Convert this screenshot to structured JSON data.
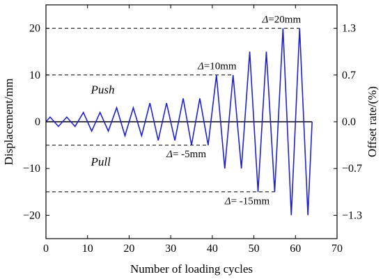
{
  "chart_data": {
    "type": "line",
    "xlabel": "Number of loading cycles",
    "ylabel": "Displacement/mm",
    "y2label": "Offset rate/(%)",
    "xlim": [
      0,
      70
    ],
    "ylim": [
      -25,
      25
    ],
    "xticks": [
      0,
      10,
      20,
      30,
      40,
      50,
      60,
      70
    ],
    "yticks": [
      -20,
      -10,
      0,
      10,
      20
    ],
    "y2ticks": [
      {
        "label": "1.3",
        "y": 20
      },
      {
        "label": "0.7",
        "y": 10
      },
      {
        "label": "0.0",
        "y": 0
      },
      {
        "label": "-0.7",
        "y": -10
      },
      {
        "label": "-1.3",
        "y": -20
      }
    ],
    "grid": false,
    "series": [
      {
        "color": "#1f1fd6",
        "points": [
          [
            0,
            0
          ],
          [
            1,
            1
          ],
          [
            3,
            -1
          ],
          [
            5,
            1
          ],
          [
            7,
            -1
          ],
          [
            9,
            2
          ],
          [
            11,
            -2
          ],
          [
            13,
            2
          ],
          [
            15,
            -2
          ],
          [
            17,
            3
          ],
          [
            19,
            -3
          ],
          [
            21,
            3
          ],
          [
            23,
            -3
          ],
          [
            25,
            4
          ],
          [
            27,
            -4
          ],
          [
            29,
            4
          ],
          [
            31,
            -4
          ],
          [
            33,
            5
          ],
          [
            35,
            -5
          ],
          [
            37,
            5
          ],
          [
            39,
            -5
          ],
          [
            41,
            10
          ],
          [
            43,
            -10
          ],
          [
            45,
            10
          ],
          [
            47,
            -10
          ],
          [
            49,
            15
          ],
          [
            51,
            -15
          ],
          [
            53,
            15
          ],
          [
            55,
            -15
          ],
          [
            57,
            20
          ],
          [
            59,
            -20
          ],
          [
            61,
            20
          ],
          [
            63,
            -20
          ],
          [
            64,
            0
          ]
        ]
      }
    ],
    "baseline": {
      "y": 0,
      "x_from": 0,
      "x_to": 64,
      "color": "#000000"
    },
    "reference_lines": [
      {
        "y": 20,
        "x_from": 0,
        "x_to": 61,
        "style": "dashed"
      },
      {
        "y": 10,
        "x_from": 0,
        "x_to": 45,
        "style": "dashed"
      },
      {
        "y": -5,
        "x_from": 0,
        "x_to": 39,
        "style": "dashed"
      },
      {
        "y": -15,
        "x_from": 0,
        "x_to": 55,
        "style": "dashed"
      }
    ],
    "annotations": [
      {
        "symbol": "Δ",
        "text": "=20mm",
        "x": 52,
        "y": 21.2
      },
      {
        "symbol": "Δ",
        "text": "=10mm",
        "x": 36.5,
        "y": 11.2
      },
      {
        "symbol": "Δ",
        "text": "= -5mm",
        "x": 29,
        "y": -7.6
      },
      {
        "symbol": "Δ",
        "text": "= -15mm",
        "x": 43,
        "y": -17.6
      }
    ],
    "regions": [
      {
        "text": "Push",
        "x": 10.8,
        "y": 6
      },
      {
        "text": "Pull",
        "x": 10.8,
        "y": -9.4
      }
    ]
  }
}
